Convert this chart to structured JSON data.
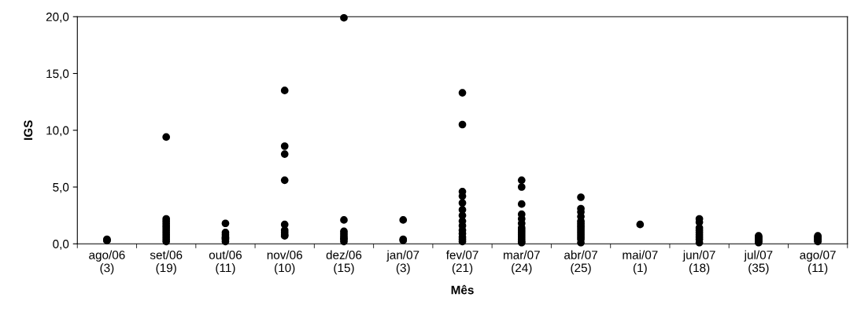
{
  "chart_data": {
    "type": "scatter",
    "xlabel": "Mês",
    "ylabel": "IGS",
    "categories": [
      "ago/06\n(3)",
      "set/06\n(19)",
      "out/06\n(11)",
      "nov/06\n(10)",
      "dez/06\n(15)",
      "jan/07\n(3)",
      "fev/07\n(21)",
      "mar/07\n(24)",
      "abr/07\n(25)",
      "mai/07\n(1)",
      "jun/07\n(18)",
      "jul/07\n(35)",
      "ago/07\n(11)"
    ],
    "series": [
      {
        "color": "#000000",
        "x": [
          "ago/06\n(3)",
          "ago/06\n(3)",
          "ago/06\n(3)",
          "set/06\n(19)",
          "set/06\n(19)",
          "set/06\n(19)",
          "set/06\n(19)",
          "set/06\n(19)",
          "set/06\n(19)",
          "set/06\n(19)",
          "set/06\n(19)",
          "set/06\n(19)",
          "set/06\n(19)",
          "set/06\n(19)",
          "set/06\n(19)",
          "out/06\n(11)",
          "out/06\n(11)",
          "out/06\n(11)",
          "out/06\n(11)",
          "out/06\n(11)",
          "out/06\n(11)",
          "out/06\n(11)",
          "nov/06\n(10)",
          "nov/06\n(10)",
          "nov/06\n(10)",
          "nov/06\n(10)",
          "nov/06\n(10)",
          "nov/06\n(10)",
          "nov/06\n(10)",
          "nov/06\n(10)",
          "nov/06\n(10)",
          "dez/06\n(15)",
          "dez/06\n(15)",
          "dez/06\n(15)",
          "dez/06\n(15)",
          "dez/06\n(15)",
          "dez/06\n(15)",
          "dez/06\n(15)",
          "dez/06\n(15)",
          "jan/07\n(3)",
          "jan/07\n(3)",
          "jan/07\n(3)",
          "fev/07\n(21)",
          "fev/07\n(21)",
          "fev/07\n(21)",
          "fev/07\n(21)",
          "fev/07\n(21)",
          "fev/07\n(21)",
          "fev/07\n(21)",
          "fev/07\n(21)",
          "fev/07\n(21)",
          "fev/07\n(21)",
          "fev/07\n(21)",
          "fev/07\n(21)",
          "fev/07\n(21)",
          "fev/07\n(21)",
          "mar/07\n(24)",
          "mar/07\n(24)",
          "mar/07\n(24)",
          "mar/07\n(24)",
          "mar/07\n(24)",
          "mar/07\n(24)",
          "mar/07\n(24)",
          "mar/07\n(24)",
          "mar/07\n(24)",
          "mar/07\n(24)",
          "mar/07\n(24)",
          "mar/07\n(24)",
          "mar/07\n(24)",
          "mar/07\n(24)",
          "abr/07\n(25)",
          "abr/07\n(25)",
          "abr/07\n(25)",
          "abr/07\n(25)",
          "abr/07\n(25)",
          "abr/07\n(25)",
          "abr/07\n(25)",
          "abr/07\n(25)",
          "abr/07\n(25)",
          "abr/07\n(25)",
          "abr/07\n(25)",
          "abr/07\n(25)",
          "abr/07\n(25)",
          "abr/07\n(25)",
          "mai/07\n(1)",
          "jun/07\n(18)",
          "jun/07\n(18)",
          "jun/07\n(18)",
          "jun/07\n(18)",
          "jun/07\n(18)",
          "jun/07\n(18)",
          "jun/07\n(18)",
          "jun/07\n(18)",
          "jun/07\n(18)",
          "jul/07\n(35)",
          "jul/07\n(35)",
          "jul/07\n(35)",
          "jul/07\n(35)",
          "jul/07\n(35)",
          "jul/07\n(35)",
          "jul/07\n(35)",
          "ago/07\n(11)",
          "ago/07\n(11)",
          "ago/07\n(11)",
          "ago/07\n(11)",
          "ago/07\n(11)",
          "ago/07\n(11)"
        ],
        "values": [
          0.3,
          0.4,
          0.3,
          9.4,
          2.2,
          2.0,
          1.8,
          1.6,
          1.4,
          1.2,
          1.0,
          0.8,
          0.6,
          0.4,
          0.2,
          1.8,
          1.0,
          0.8,
          0.6,
          0.5,
          0.4,
          0.2,
          13.5,
          8.6,
          7.9,
          5.6,
          1.7,
          1.2,
          1.0,
          0.8,
          0.7,
          19.9,
          2.1,
          1.1,
          0.9,
          0.7,
          0.5,
          0.4,
          0.2,
          2.1,
          0.4,
          0.3,
          13.3,
          10.5,
          4.6,
          4.2,
          3.6,
          3.0,
          2.5,
          2.0,
          1.6,
          1.2,
          0.9,
          0.6,
          0.4,
          0.2,
          5.6,
          5.0,
          3.5,
          2.6,
          2.2,
          1.8,
          1.4,
          1.2,
          1.0,
          0.8,
          0.6,
          0.4,
          0.2,
          0.1,
          4.1,
          3.1,
          2.8,
          2.4,
          2.0,
          1.8,
          1.6,
          1.4,
          1.2,
          1.0,
          0.8,
          0.6,
          0.4,
          0.1,
          1.7,
          2.2,
          1.9,
          1.4,
          1.2,
          1.0,
          0.8,
          0.6,
          0.4,
          0.1,
          0.7,
          0.6,
          0.5,
          0.4,
          0.3,
          0.2,
          0.1,
          0.7,
          0.6,
          0.5,
          0.4,
          0.3,
          0.2
        ]
      }
    ],
    "ylim": [
      0,
      20
    ],
    "yticks": [
      {
        "value": 0,
        "label": "0,0"
      },
      {
        "value": 5,
        "label": "5,0"
      },
      {
        "value": 10,
        "label": "10,0"
      },
      {
        "value": 15,
        "label": "15,0"
      },
      {
        "value": 20,
        "label": "20,0"
      }
    ],
    "marker": "circle",
    "grid": false
  }
}
